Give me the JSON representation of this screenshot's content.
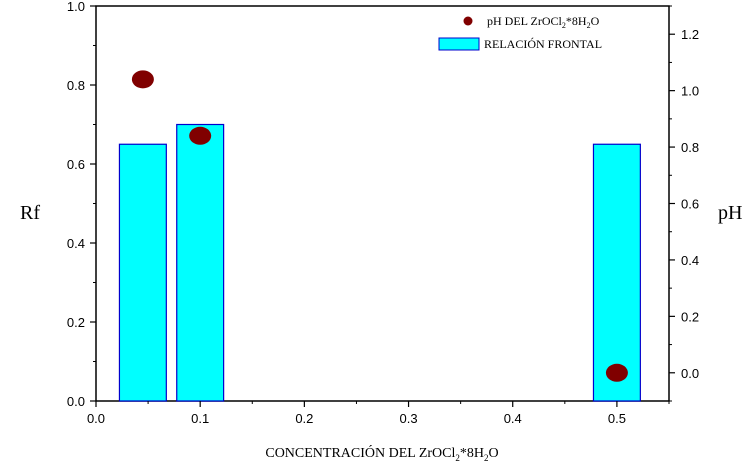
{
  "chart_data": {
    "type": "bar+scatter",
    "xlabel": "CONCENTRACIÓN DEL ZrOCl",
    "xlabel_sub": "2",
    "xlabel_mid": "*8H",
    "xlabel_sub2": "2",
    "xlabel_end": "O",
    "ylabel_left": "Rf",
    "ylabel_right": "pH",
    "xlim": [
      0.0,
      0.55
    ],
    "ylim_left": [
      0.0,
      1.0
    ],
    "ylim_right": [
      -0.1,
      1.3
    ],
    "x_ticks": [
      "0.0",
      "0.1",
      "0.2",
      "0.3",
      "0.4",
      "0.5"
    ],
    "y_left_ticks": [
      "0.0",
      "0.2",
      "0.4",
      "0.6",
      "0.8",
      "1.0"
    ],
    "y_right_ticks": [
      "0.0",
      "0.2",
      "0.4",
      "0.6",
      "0.8",
      "1.0",
      "1.2"
    ],
    "bar_width": 0.045,
    "bars": {
      "name": "RELACIÓN FRONTAL",
      "color": "#00ffff",
      "edge_color": "#0000cc",
      "x": [
        0.045,
        0.1,
        0.5
      ],
      "values": [
        0.65,
        0.7,
        0.65
      ]
    },
    "points": {
      "name": "pH DEL ZrOCl",
      "name_sub": "2",
      "name_mid": "*8H",
      "name_sub2": "2",
      "name_end": "O",
      "color": "#800000",
      "x": [
        0.045,
        0.1,
        0.5
      ],
      "values": [
        1.04,
        0.84,
        0.0
      ]
    },
    "legend_position": "top-right"
  }
}
